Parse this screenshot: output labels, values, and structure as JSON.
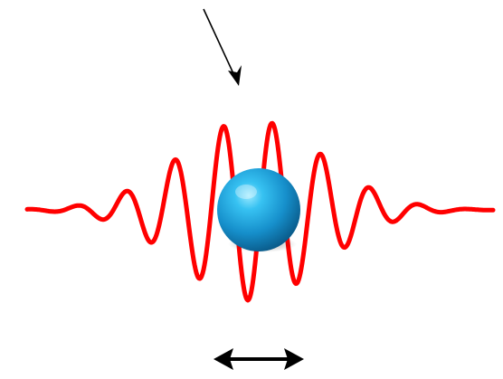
{
  "diagram": {
    "elements": [
      {
        "name": "incoming-arrow",
        "kind": "arrow",
        "color": "#000000"
      },
      {
        "name": "wave-packet",
        "kind": "oscillating-curve",
        "color": "#ff0000"
      },
      {
        "name": "particle-sphere",
        "kind": "sphere",
        "color": "#1a9ad6"
      },
      {
        "name": "double-headed-arrow",
        "kind": "arrow",
        "color": "#000000"
      }
    ]
  }
}
